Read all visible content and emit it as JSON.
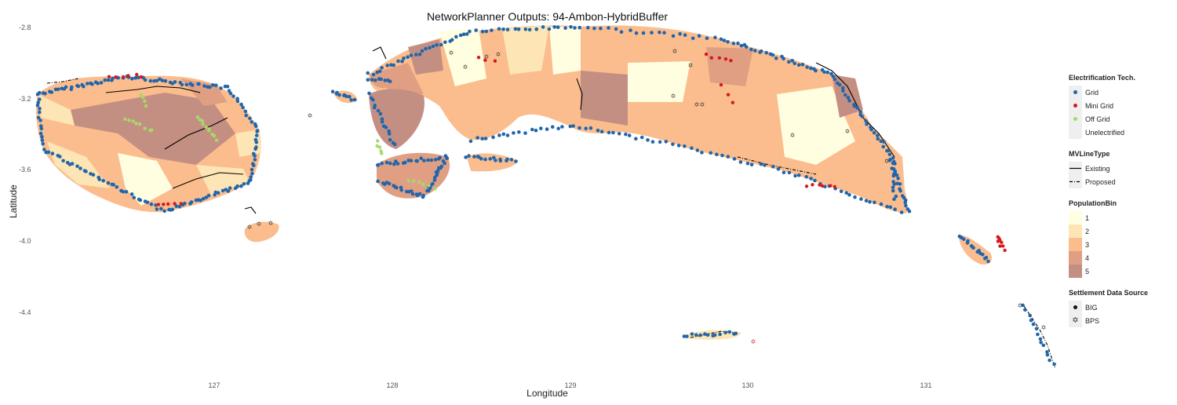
{
  "title": "NetworkPlanner Outputs: 94-Ambon-HybridBuffer",
  "axes": {
    "xlabel": "Longitude",
    "ylabel": "Latitude",
    "xticks": [
      "127",
      "128",
      "129",
      "130",
      "131"
    ],
    "yticks": [
      "-2.8",
      "-3.2",
      "-3.6",
      "-4.0",
      "-4.4"
    ]
  },
  "map_extent": {
    "lon": [
      126.08,
      131.75
    ],
    "lat": [
      -4.82,
      -2.72
    ]
  },
  "colors": {
    "grid": "#2166ac",
    "mini_grid": "#d7191c",
    "off_grid": "#a6d96a",
    "unelectrified": "#f0f0f0",
    "mv_line": "#000000",
    "pop1": "#fffee0",
    "pop2": "#fde5b5",
    "pop3": "#fbbd8d",
    "pop4": "#e09f82",
    "pop5": "#c48f83"
  },
  "legend": {
    "tech": {
      "title": "Electrification Tech.",
      "items": [
        {
          "label": "Grid",
          "color": "#2166ac"
        },
        {
          "label": "Mini Grid",
          "color": "#d7191c"
        },
        {
          "label": "Off Grid",
          "color": "#a6d96a"
        },
        {
          "label": "Unelectrified",
          "color": "#f0f0f0"
        }
      ]
    },
    "mvline": {
      "title": "MVLineType",
      "items": [
        {
          "label": "Existing",
          "style": "solid"
        },
        {
          "label": "Proposed",
          "style": "dashdot"
        }
      ]
    },
    "population": {
      "title": "PopulationBin",
      "items": [
        {
          "label": "1",
          "color": "#fffee0"
        },
        {
          "label": "2",
          "color": "#fde5b5"
        },
        {
          "label": "3",
          "color": "#fbbd8d"
        },
        {
          "label": "4",
          "color": "#e09f82"
        },
        {
          "label": "5",
          "color": "#c48f83"
        }
      ]
    },
    "source": {
      "title": "Settlement Data Source",
      "items": [
        {
          "label": "BIG",
          "shape": "dot"
        },
        {
          "label": "BPS",
          "shape": "star"
        }
      ]
    }
  }
}
